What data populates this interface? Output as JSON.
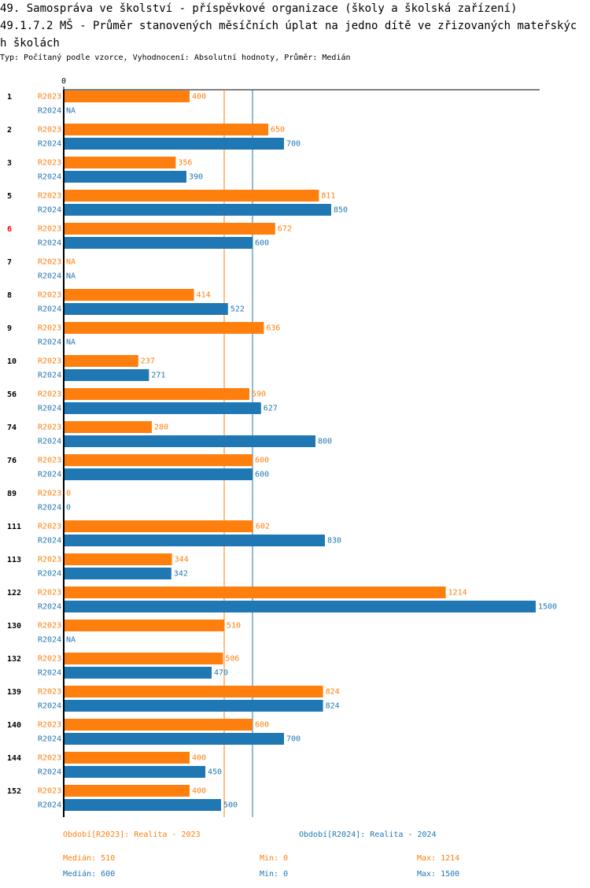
{
  "chart_data": {
    "type": "bar",
    "orientation": "horizontal",
    "title": "49. Samospráva ve školství - příspěvkové organizace (školy a školská zařízení)",
    "subtitle": "49.1.7.2 MŠ - Průměr stanovených měsíčních úplat na jedno dítě ve zřizovaných mateřských školách",
    "note": "Typ: Počítaný podle vzorce, Vyhodnocení: Absolutní hodnoty, Průměr: Medián",
    "categories": [
      "1",
      "2",
      "3",
      "5",
      "6",
      "7",
      "8",
      "9",
      "10",
      "56",
      "74",
      "76",
      "89",
      "111",
      "113",
      "122",
      "130",
      "132",
      "139",
      "140",
      "144",
      "152"
    ],
    "highlight": {
      "category": "6",
      "color": "#ff0000"
    },
    "na_label": "NA",
    "series": [
      {
        "name": "R2023",
        "color": "#ff7f0e",
        "values": [
          400,
          650,
          356,
          811,
          672,
          null,
          414,
          636,
          237,
          590,
          280,
          600,
          0,
          602,
          344,
          1214,
          510,
          506,
          824,
          600,
          400,
          400
        ],
        "legend": "Období[R2023]: Realita - 2023",
        "median": {
          "value": 510,
          "label": "Medián: 510"
        },
        "min": {
          "value": 0,
          "label": "Min: 0"
        },
        "max": {
          "value": 1214,
          "label": "Max: 1214"
        }
      },
      {
        "name": "R2024",
        "color": "#1f77b4",
        "values": [
          null,
          700,
          390,
          850,
          600,
          null,
          522,
          null,
          271,
          627,
          800,
          600,
          0,
          830,
          342,
          1500,
          null,
          470,
          824,
          700,
          450,
          500
        ],
        "legend": "Období[R2024]: Realita - 2024",
        "median": {
          "value": 600,
          "label": "Medián: 600"
        },
        "min": {
          "value": 0,
          "label": "Min: 0"
        },
        "max": {
          "value": 1500,
          "label": "Max: 1500"
        }
      }
    ],
    "xlim": [
      0,
      1500
    ],
    "xticks": [
      0
    ]
  }
}
